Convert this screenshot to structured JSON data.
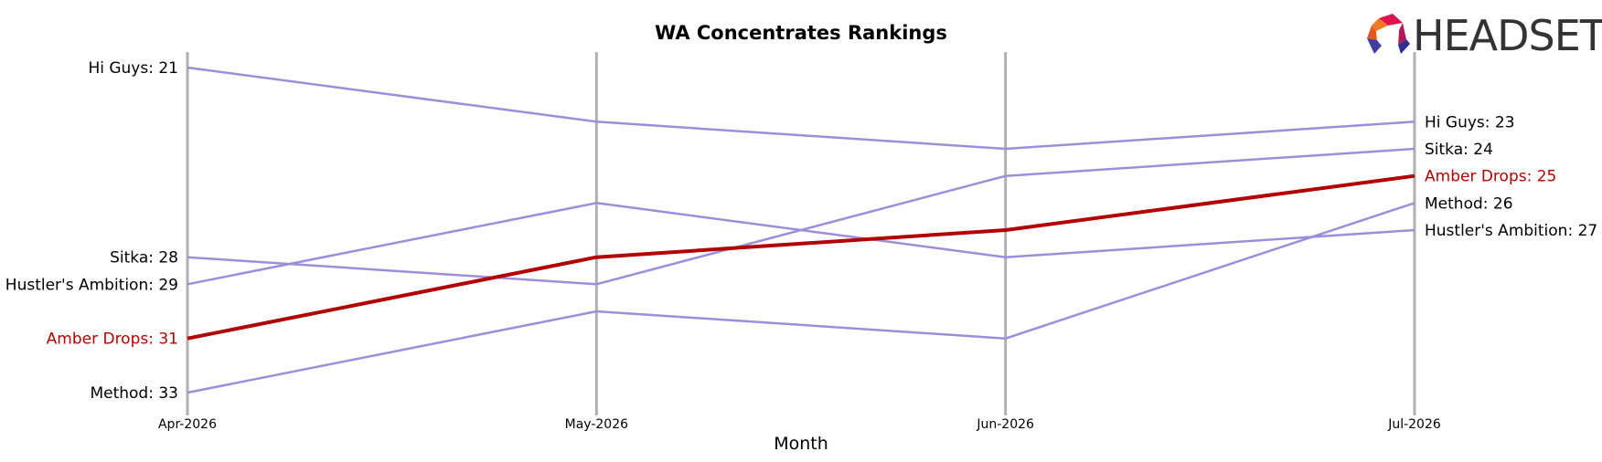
{
  "chart_data": {
    "type": "line",
    "title": "WA Concentrates Rankings",
    "xlabel": "Month",
    "ylabel": "",
    "x": [
      "Apr-2026",
      "May-2026",
      "Jun-2026",
      "Jul-2026"
    ],
    "y_inverted": true,
    "ylim": [
      21,
      33
    ],
    "grid": "vertical",
    "series": [
      {
        "name": "Hi Guys",
        "values": [
          21,
          23,
          24,
          23
        ],
        "highlight": false
      },
      {
        "name": "Sitka",
        "values": [
          28,
          29,
          25,
          24
        ],
        "highlight": false
      },
      {
        "name": "Hustler's Ambition",
        "values": [
          29,
          26,
          28,
          27
        ],
        "highlight": false
      },
      {
        "name": "Amber Drops",
        "values": [
          31,
          28,
          27,
          25
        ],
        "highlight": true
      },
      {
        "name": "Method",
        "values": [
          33,
          30,
          31,
          26
        ],
        "highlight": false
      }
    ],
    "start_labels": [
      "Hi Guys: 21",
      "Sitka: 28",
      "Hustler's Ambition: 29",
      "Amber Drops: 31",
      "Method: 33"
    ],
    "end_labels": [
      "Hi Guys: 23",
      "Sitka: 24",
      "Amber Drops: 25",
      "Method: 26",
      "Hustler's Ambition: 27"
    ]
  },
  "logo": {
    "text": "HEADSET"
  },
  "colors": {
    "series": "#9b8fdb",
    "highlight": "#b30000",
    "gridline": "#b0b0b0",
    "text": "#000000",
    "logo_text": "#333333"
  }
}
